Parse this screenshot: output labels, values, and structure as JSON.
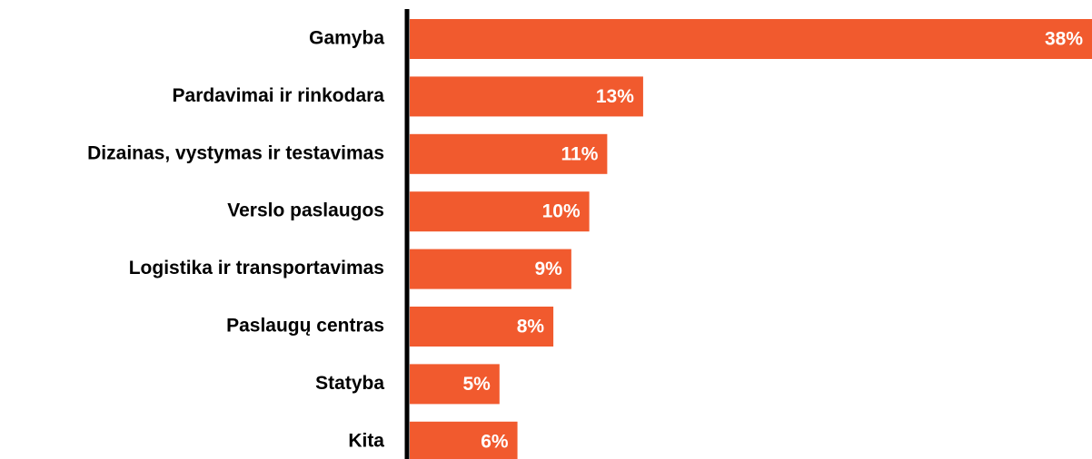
{
  "chart_data": {
    "type": "bar",
    "orientation": "horizontal",
    "categories": [
      "Gamyba",
      "Pardavimai ir rinkodara",
      "Dizainas, vystymas ir testavimas",
      "Verslo paslaugos",
      "Logistika ir transportavimas",
      "Paslaugų centras",
      "Statyba",
      "Kita"
    ],
    "values": [
      38,
      13,
      11,
      10,
      9,
      8,
      5,
      6
    ],
    "value_labels": [
      "38%",
      "13%",
      "11%",
      "10%",
      "9%",
      "8%",
      "5%",
      "6%"
    ],
    "color": "#f15a2e"
  }
}
